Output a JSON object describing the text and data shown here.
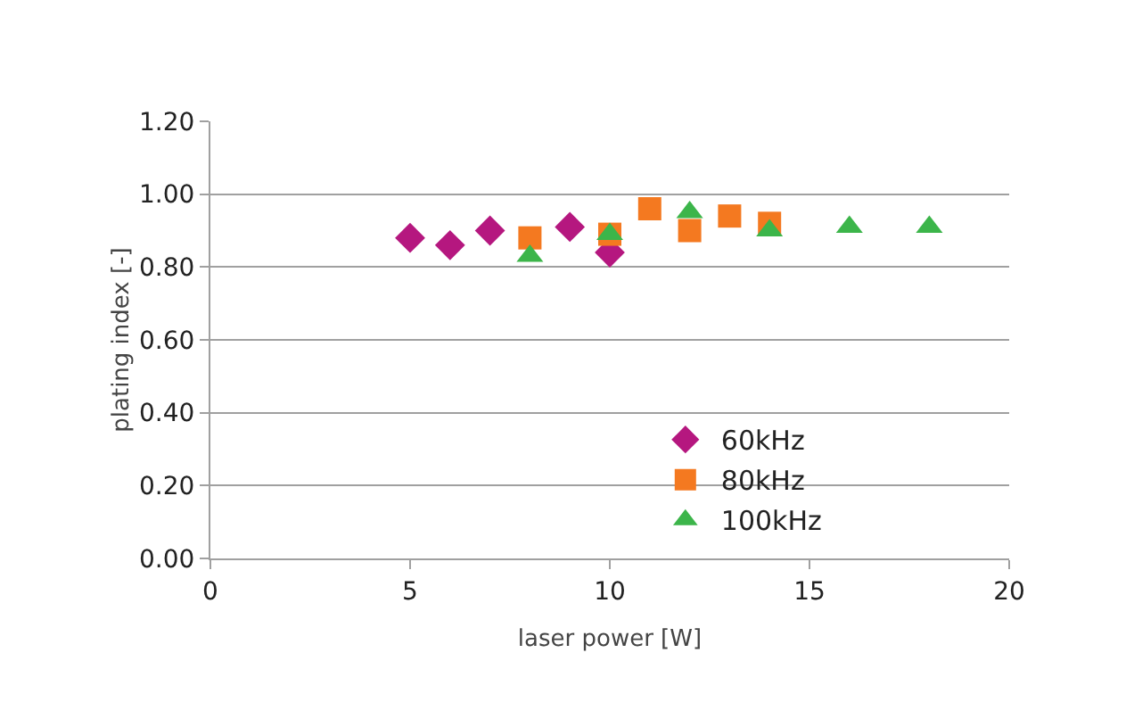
{
  "chart_data": {
    "type": "scatter",
    "xlabel": "laser power [W]",
    "ylabel": "plating index [-]",
    "xlim": [
      0,
      20
    ],
    "xticks": [
      0,
      5,
      10,
      15,
      20
    ],
    "ylim": [
      0,
      1.2
    ],
    "yticks": [
      {
        "value": 0,
        "label": "0.00"
      },
      {
        "value": 0.2,
        "label": "0.20"
      },
      {
        "value": 0.4,
        "label": "0.40"
      },
      {
        "value": 0.6,
        "label": "0.60"
      },
      {
        "value": 0.8,
        "label": "0.80"
      },
      {
        "value": 1.0,
        "label": "1.00"
      },
      {
        "value": 1.2,
        "label": "1.20"
      }
    ],
    "grid": "y",
    "legend": "bottom right",
    "series": [
      {
        "name": "60kHz",
        "color": "#b5177f",
        "marker": "diamond",
        "x": [
          5,
          6,
          7,
          9,
          10
        ],
        "values": [
          0.88,
          0.86,
          0.9,
          0.91,
          0.84
        ]
      },
      {
        "name": "80kHz",
        "color": "#f47920",
        "marker": "square",
        "x": [
          8,
          10,
          11,
          12,
          13,
          14
        ],
        "values": [
          0.88,
          0.89,
          0.96,
          0.9,
          0.94,
          0.92
        ]
      },
      {
        "name": "100kHz",
        "color": "#3cb54a",
        "marker": "triangle",
        "x": [
          8,
          10,
          12,
          14,
          16,
          18
        ],
        "values": [
          0.83,
          0.89,
          0.95,
          0.9,
          0.91,
          0.91
        ]
      }
    ]
  }
}
